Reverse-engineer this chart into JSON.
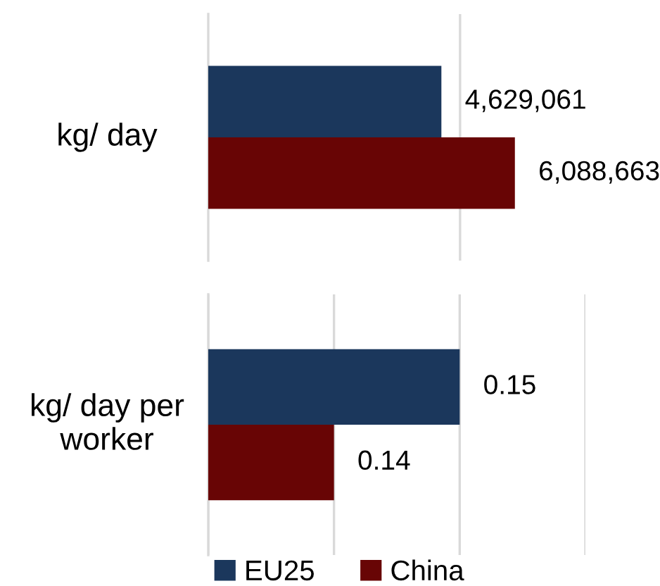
{
  "chart_data": [
    {
      "type": "bar",
      "orientation": "horizontal",
      "categories": [
        "kg/ day"
      ],
      "series": [
        {
          "color": "#680505",
          "values": [
            6088663
          ],
          "value_labels": [
            "6,088,663"
          ]
        },
        {
          "color": "#1b375c",
          "values": [
            4629061
          ],
          "value_labels": [
            "4,629,061"
          ]
        }
      ],
      "ref_lines": [
        {
          "axis": "x",
          "value": 5000000,
          "color": "#d9d9d9"
        }
      ],
      "tick_labels": "y"
    },
    {
      "type": "bar",
      "orientation": "horizontal",
      "categories": [
        "kg/ day per worker"
      ],
      "series": [
        {
          "name": "China",
          "color": "#680505",
          "values": [
            0.14
          ],
          "value_labels": [
            "0.14"
          ]
        },
        {
          "name": "EU25",
          "color": "#1b375c",
          "values": [
            0.15
          ],
          "value_labels": [
            "0.15"
          ]
        }
      ],
      "xlim": [
        0.13,
        0.16
      ],
      "xticks": [
        {
          "value": 0.13,
          "label": null
        },
        {
          "value": 0.14,
          "label": null
        },
        {
          "value": 0.15,
          "label": null
        },
        {
          "value": 0.16,
          "label": null
        }
      ],
      "grid": "x",
      "tick_labels": "y",
      "legend": "bottom"
    }
  ]
}
